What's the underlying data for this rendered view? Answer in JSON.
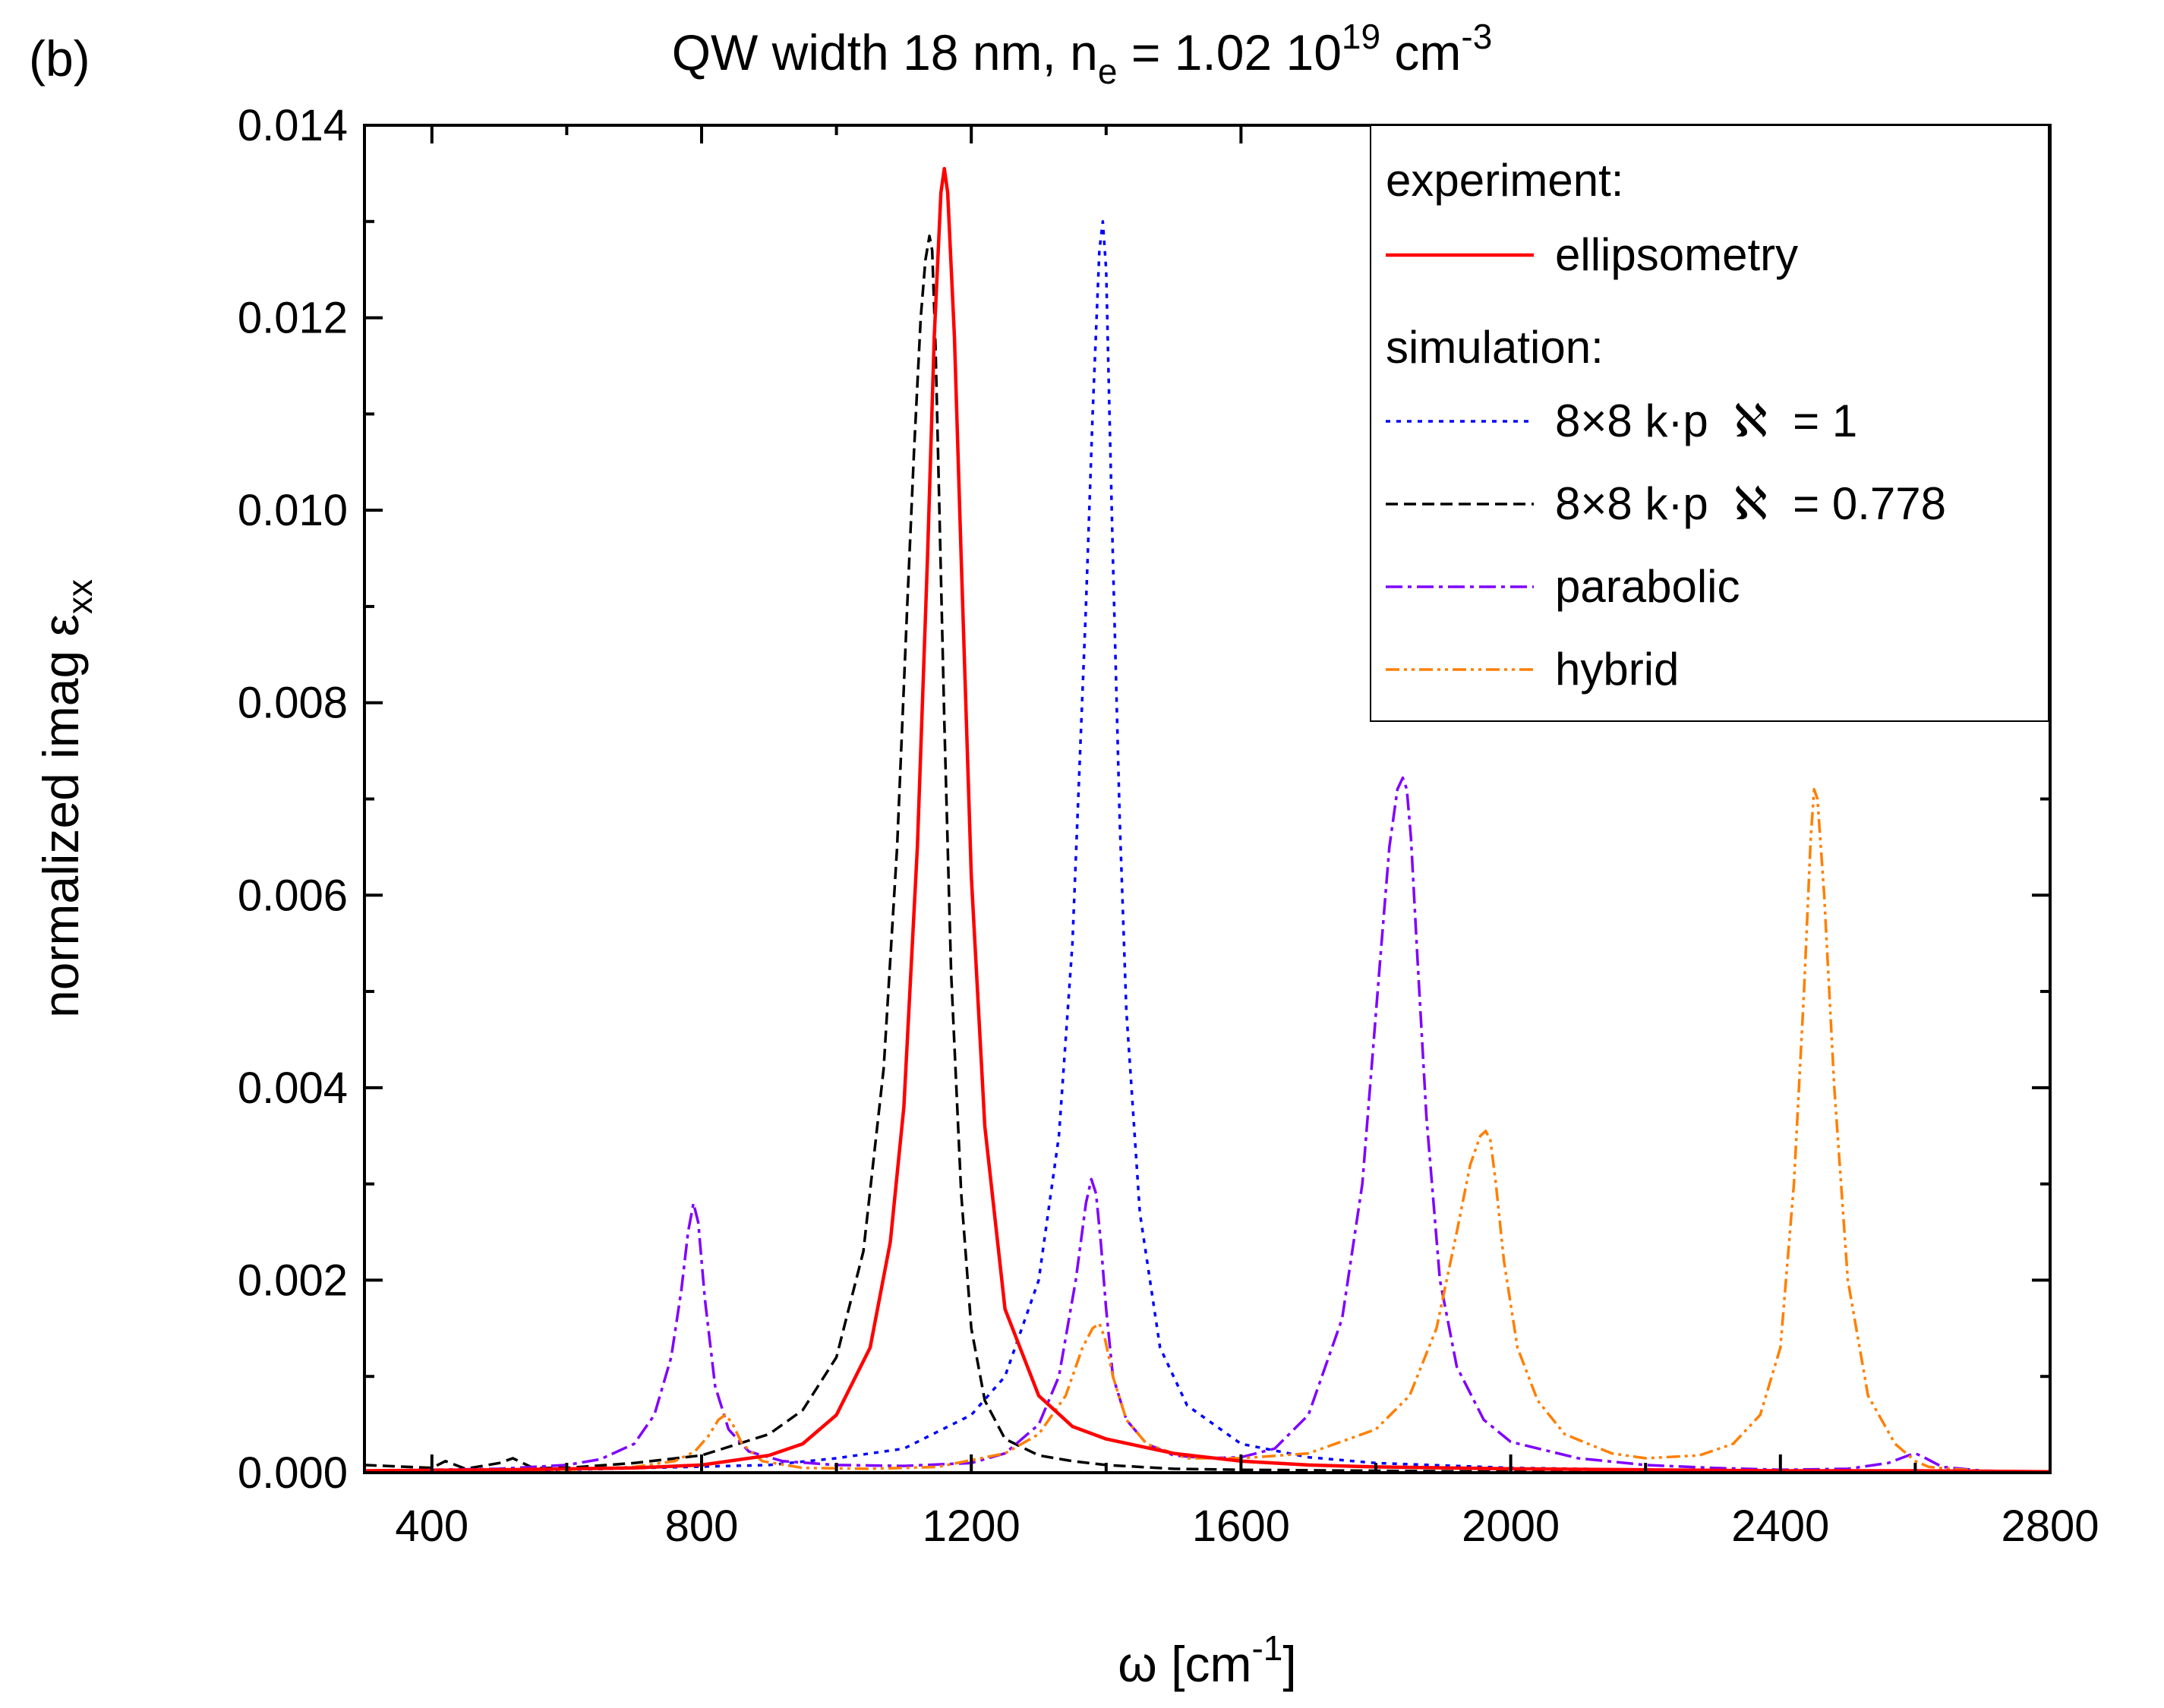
{
  "panel_label": "(b)",
  "colors": {
    "ellipsometry": "#ff0000",
    "kp1": "#0000ff",
    "kp0778": "#000000",
    "parabolic": "#7f00ff",
    "hybrid": "#ff7f00",
    "axis": "#000000"
  },
  "chart_data": {
    "type": "line",
    "title": {
      "prefix": "QW width 18 nm, n",
      "sub": "e",
      "mid": " = 1.02 10",
      "sup": "19",
      "suffix": " cm",
      "sup2": "-3"
    },
    "xlabel": {
      "main": "ω [cm",
      "sup": "-1",
      "end": "]"
    },
    "ylabel": {
      "main": "normalized imag ε",
      "sub": "xx"
    },
    "xlim": [
      300,
      2800
    ],
    "ylim": [
      0,
      0.014
    ],
    "xticks": [
      400,
      800,
      1200,
      1600,
      2000,
      2400,
      2800
    ],
    "xtick_labels": [
      "400",
      "800",
      "1200",
      "1600",
      "2000",
      "2400",
      "2800"
    ],
    "yticks": [
      0,
      0.002,
      0.004,
      0.006,
      0.008,
      0.01,
      0.012,
      0.014
    ],
    "ytick_labels": [
      "0.000",
      "0.002",
      "0.004",
      "0.006",
      "0.008",
      "0.010",
      "0.012",
      "0.014"
    ],
    "legend": {
      "position": "top-right",
      "headers": [
        "experiment:",
        "simulation:"
      ],
      "entries": [
        {
          "label": "ellipsometry"
        },
        {
          "label": "8×8 k·p  ℵ  = 1"
        },
        {
          "label": "8×8 k·p  ℵ  = 0.778"
        },
        {
          "label": "parabolic"
        },
        {
          "label": "hybrid"
        }
      ]
    },
    "series": [
      {
        "name": "ellipsometry",
        "style": "solid",
        "color_key": "ellipsometry",
        "x": [
          300,
          500,
          700,
          800,
          900,
          950,
          1000,
          1050,
          1080,
          1100,
          1120,
          1135,
          1145,
          1155,
          1160,
          1165,
          1175,
          1185,
          1200,
          1220,
          1250,
          1300,
          1350,
          1400,
          1500,
          1600,
          1700,
          1800,
          2000,
          2200,
          2400,
          2600,
          2800
        ],
        "y": [
          2e-05,
          3e-05,
          5e-05,
          8e-05,
          0.00018,
          0.0003,
          0.0006,
          0.0013,
          0.0024,
          0.0038,
          0.0065,
          0.0095,
          0.0118,
          0.0133,
          0.01355,
          0.0133,
          0.0118,
          0.0095,
          0.0062,
          0.0036,
          0.0017,
          0.0008,
          0.00048,
          0.00035,
          0.0002,
          0.00012,
          8e-05,
          6e-05,
          4e-05,
          3e-05,
          2e-05,
          2e-05,
          1e-05
        ]
      },
      {
        "name": "8×8 k·p ℵ = 1",
        "style": "dotted",
        "color_key": "kp1",
        "x": [
          300,
          600,
          900,
          1000,
          1100,
          1200,
          1250,
          1300,
          1330,
          1350,
          1370,
          1380,
          1390,
          1395,
          1400,
          1405,
          1410,
          1420,
          1430,
          1450,
          1480,
          1520,
          1600,
          1700,
          1800,
          2000,
          2200,
          2400,
          2600,
          2800
        ],
        "y": [
          1e-05,
          3e-05,
          8e-05,
          0.00015,
          0.00025,
          0.0006,
          0.001,
          0.002,
          0.0035,
          0.0055,
          0.009,
          0.011,
          0.0127,
          0.013,
          0.0125,
          0.011,
          0.0095,
          0.0068,
          0.0048,
          0.0027,
          0.0013,
          0.0007,
          0.0003,
          0.00016,
          0.0001,
          5e-05,
          3e-05,
          2e-05,
          1e-05,
          1e-05
        ]
      },
      {
        "name": "8×8 k·p ℵ = 0.778",
        "style": "dashed",
        "color_key": "kp0778",
        "x": [
          300,
          400,
          420,
          450,
          500,
          520,
          550,
          600,
          700,
          800,
          900,
          950,
          1000,
          1040,
          1070,
          1090,
          1105,
          1115,
          1125,
          1132,
          1138,
          1142,
          1147,
          1152,
          1160,
          1170,
          1185,
          1200,
          1220,
          1250,
          1300,
          1350,
          1400,
          1500,
          1600,
          1800,
          2000,
          2200,
          2400,
          2600,
          2800
        ],
        "y": [
          8e-05,
          5e-05,
          0.00012,
          4e-05,
          0.0001,
          0.00015,
          5e-05,
          5e-05,
          0.0001,
          0.00018,
          0.0004,
          0.00065,
          0.0012,
          0.0023,
          0.0042,
          0.0065,
          0.009,
          0.0106,
          0.012,
          0.0126,
          0.01285,
          0.0127,
          0.0117,
          0.0102,
          0.0078,
          0.0052,
          0.0029,
          0.0015,
          0.00075,
          0.00035,
          0.00018,
          0.00012,
          8e-05,
          4e-05,
          3e-05,
          2e-05,
          1e-05,
          1e-05,
          1e-05,
          1e-05,
          1e-05
        ]
      },
      {
        "name": "parabolic",
        "style": "dashdot",
        "color_key": "parabolic",
        "x": [
          300,
          500,
          600,
          650,
          700,
          730,
          755,
          770,
          780,
          788,
          795,
          805,
          820,
          840,
          870,
          920,
          1000,
          1100,
          1200,
          1250,
          1300,
          1330,
          1355,
          1370,
          1378,
          1385,
          1392,
          1400,
          1410,
          1430,
          1460,
          1500,
          1550,
          1600,
          1650,
          1700,
          1750,
          1780,
          1805,
          1820,
          1832,
          1840,
          1846,
          1852,
          1862,
          1875,
          1895,
          1920,
          1960,
          2000,
          2100,
          2200,
          2300,
          2400,
          2500,
          2560,
          2590,
          2600,
          2610,
          2640,
          2700,
          2800
        ],
        "y": [
          2e-05,
          4e-05,
          8e-05,
          0.00014,
          0.0003,
          0.0006,
          0.0012,
          0.0019,
          0.0025,
          0.0028,
          0.0026,
          0.0018,
          0.0009,
          0.00045,
          0.00022,
          0.00012,
          8e-05,
          7e-05,
          0.0001,
          0.0002,
          0.0005,
          0.001,
          0.002,
          0.0028,
          0.00305,
          0.0029,
          0.0024,
          0.0017,
          0.001,
          0.00055,
          0.0003,
          0.00018,
          0.00015,
          0.00016,
          0.00025,
          0.0006,
          0.0016,
          0.003,
          0.0052,
          0.0065,
          0.0071,
          0.00722,
          0.0071,
          0.0066,
          0.0053,
          0.0037,
          0.002,
          0.0011,
          0.00055,
          0.00032,
          0.00015,
          8e-05,
          5e-05,
          3e-05,
          4e-05,
          0.0001,
          0.00018,
          0.0002,
          0.00017,
          6e-05,
          2e-05,
          1e-05
        ]
      },
      {
        "name": "hybrid",
        "style": "dashdotdot",
        "color_key": "hybrid",
        "x": [
          300,
          600,
          700,
          760,
          790,
          810,
          825,
          835,
          845,
          860,
          890,
          950,
          1050,
          1150,
          1250,
          1300,
          1340,
          1365,
          1380,
          1390,
          1398,
          1410,
          1430,
          1460,
          1520,
          1600,
          1700,
          1800,
          1850,
          1890,
          1920,
          1940,
          1955,
          1963,
          1970,
          1978,
          1990,
          2010,
          2040,
          2080,
          2150,
          2200,
          2280,
          2330,
          2370,
          2400,
          2420,
          2435,
          2445,
          2450,
          2455,
          2465,
          2480,
          2500,
          2530,
          2570,
          2600,
          2620,
          2650,
          2700,
          2800
        ],
        "y": [
          1e-05,
          3e-05,
          6e-05,
          0.00012,
          0.00022,
          0.00038,
          0.00055,
          0.0006,
          0.00052,
          0.0003,
          0.00012,
          5e-05,
          4e-05,
          6e-05,
          0.0002,
          0.0004,
          0.0008,
          0.0013,
          0.0015,
          0.00155,
          0.0014,
          0.001,
          0.00055,
          0.0003,
          0.00015,
          0.00015,
          0.0002,
          0.00045,
          0.0008,
          0.0015,
          0.0025,
          0.0032,
          0.0035,
          0.00355,
          0.00345,
          0.003,
          0.0022,
          0.0013,
          0.00075,
          0.0004,
          0.0002,
          0.00015,
          0.00018,
          0.0003,
          0.0006,
          0.0013,
          0.003,
          0.005,
          0.0066,
          0.0071,
          0.007,
          0.006,
          0.004,
          0.002,
          0.0008,
          0.0003,
          0.00012,
          6e-05,
          4e-05,
          2e-05,
          1e-05
        ]
      }
    ]
  }
}
